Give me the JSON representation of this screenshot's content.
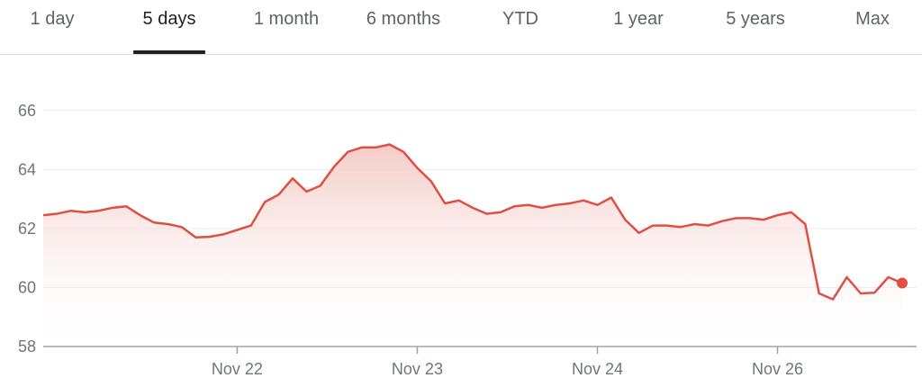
{
  "tabs": [
    {
      "label": "1 day",
      "active": false
    },
    {
      "label": "5 days",
      "active": true
    },
    {
      "label": "1 month",
      "active": false
    },
    {
      "label": "6 months",
      "active": false
    },
    {
      "label": "YTD",
      "active": false
    },
    {
      "label": "1 year",
      "active": false
    },
    {
      "label": "5 years",
      "active": false
    },
    {
      "label": "Max",
      "active": false
    }
  ],
  "colors": {
    "line": "#e14f44",
    "fill_top": "#f3c5c0",
    "grid": "#ececec",
    "axis": "#9aa0a6"
  },
  "chart_data": {
    "type": "area",
    "ylim": [
      58,
      67
    ],
    "yticks": [
      58,
      60,
      62,
      64,
      66
    ],
    "xticks": [
      {
        "label": "Nov 22",
        "x": 14
      },
      {
        "label": "Nov 23",
        "x": 27
      },
      {
        "label": "Nov 24",
        "x": 40
      },
      {
        "label": "Nov 26",
        "x": 53
      }
    ],
    "xlim": [
      0,
      60
    ],
    "series": [
      {
        "values": [
          62.45,
          62.5,
          62.6,
          62.55,
          62.6,
          62.7,
          62.75,
          62.45,
          62.2,
          62.15,
          62.05,
          61.7,
          61.72,
          61.8,
          61.95,
          62.1,
          62.9,
          63.15,
          63.7,
          63.25,
          63.45,
          64.1,
          64.6,
          64.75,
          64.75,
          64.85,
          64.6,
          64.05,
          63.6,
          62.85,
          62.95,
          62.7,
          62.5,
          62.55,
          62.75,
          62.8,
          62.7,
          62.8,
          62.85,
          62.95,
          62.8,
          63.05,
          62.3,
          61.85,
          62.1,
          62.1,
          62.05,
          62.15,
          62.1,
          62.25,
          62.35,
          62.35,
          62.3,
          62.45,
          62.55,
          62.15,
          59.8,
          59.6,
          60.35,
          59.8,
          59.82,
          60.35,
          60.15
        ]
      }
    ]
  }
}
